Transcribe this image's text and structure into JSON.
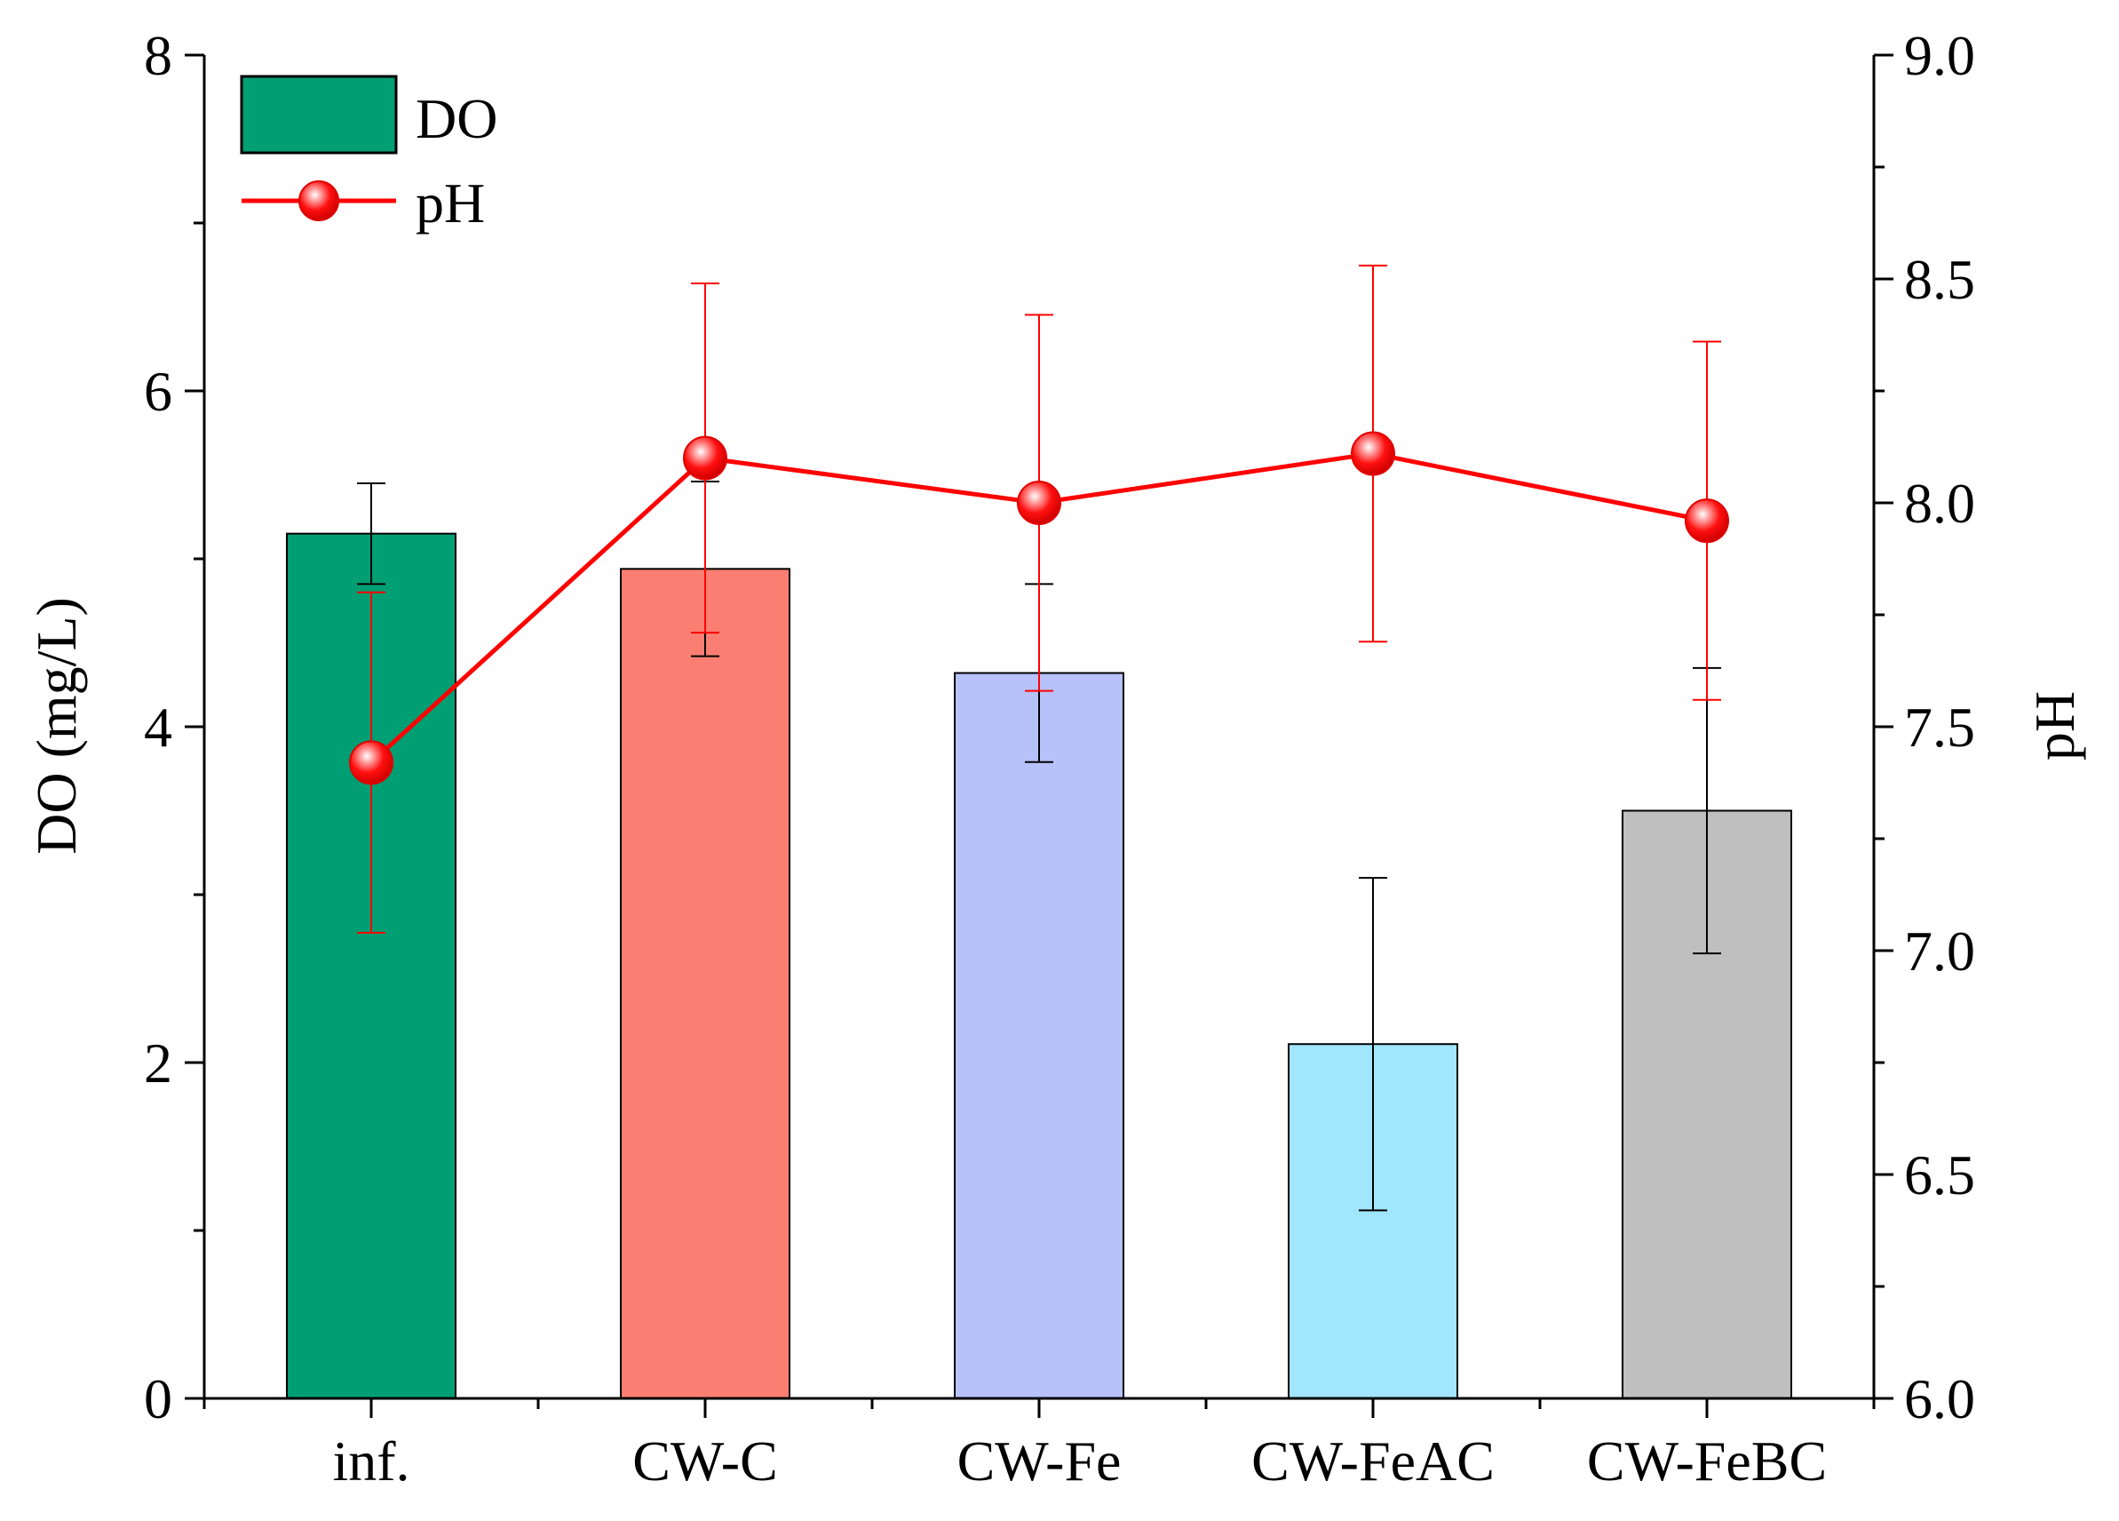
{
  "chart_data": {
    "type": "bar",
    "categories": [
      "inf.",
      "CW-C",
      "CW-Fe",
      "CW-FeAC",
      "CW-FeBC"
    ],
    "series": [
      {
        "name": "DO",
        "kind": "bar",
        "axis": "left",
        "values": [
          5.15,
          4.94,
          4.32,
          2.11,
          3.5
        ],
        "errors": [
          0.3,
          0.52,
          0.53,
          0.99,
          0.85
        ]
      },
      {
        "name": "pH",
        "kind": "line",
        "axis": "right",
        "values": [
          7.42,
          8.1,
          8.0,
          8.11,
          7.96
        ],
        "errors": [
          0.38,
          0.39,
          0.42,
          0.42,
          0.4
        ]
      }
    ],
    "bar_colors": [
      "#009E73",
      "#FA7F72",
      "#B7C2FB",
      "#A1E6FD",
      "#BFBFBF"
    ],
    "line_color": "#FF0000",
    "y_left": {
      "label": "DO (mg/L)",
      "range": [
        0,
        8
      ],
      "major_ticks": [
        0,
        2,
        4,
        6,
        8
      ]
    },
    "y_right": {
      "label": "pH",
      "range": [
        6.0,
        9.0
      ],
      "major_ticks": [
        "6.0",
        "6.5",
        "7.0",
        "7.5",
        "8.0",
        "8.5",
        "9.0"
      ]
    },
    "legend": {
      "position": "top-left",
      "entries": [
        "DO",
        "pH"
      ]
    },
    "grid": false
  }
}
